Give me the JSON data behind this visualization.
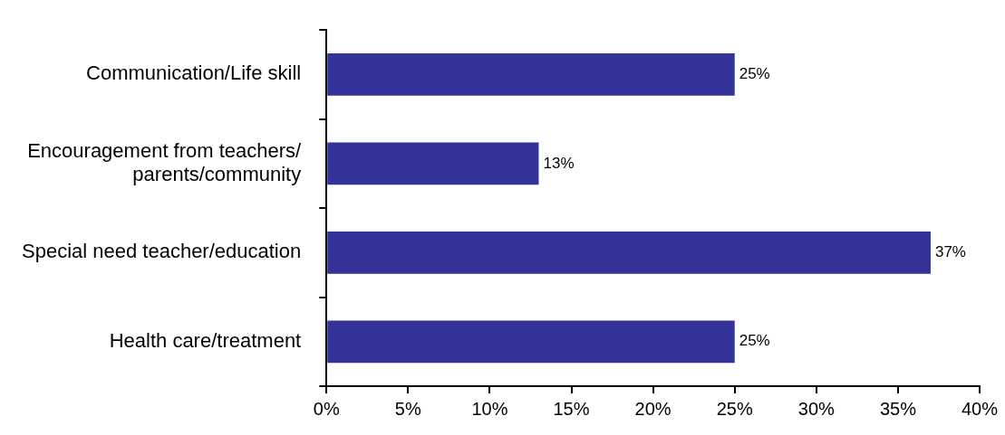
{
  "chart_data": {
    "type": "bar",
    "orientation": "horizontal",
    "categories": [
      "Communication/Life skill",
      "Encouragement from teachers/\nparents/community",
      "Special need teacher/education",
      "Health care/treatment"
    ],
    "values": [
      25,
      13,
      37,
      25
    ],
    "color": "#333399",
    "value_labels": [
      "25%",
      "13%",
      "37%",
      "25%"
    ],
    "xlim": [
      0,
      40
    ],
    "xticks": [
      {
        "value": 0,
        "label": "0%"
      },
      {
        "value": 5,
        "label": "5%"
      },
      {
        "value": 10,
        "label": "10%"
      },
      {
        "value": 15,
        "label": "15%"
      },
      {
        "value": 20,
        "label": "20%"
      },
      {
        "value": 25,
        "label": "25%"
      },
      {
        "value": 30,
        "label": "30%"
      },
      {
        "value": 35,
        "label": "35%"
      },
      {
        "value": 40,
        "label": "40%"
      }
    ],
    "grid": false,
    "legend": false
  }
}
